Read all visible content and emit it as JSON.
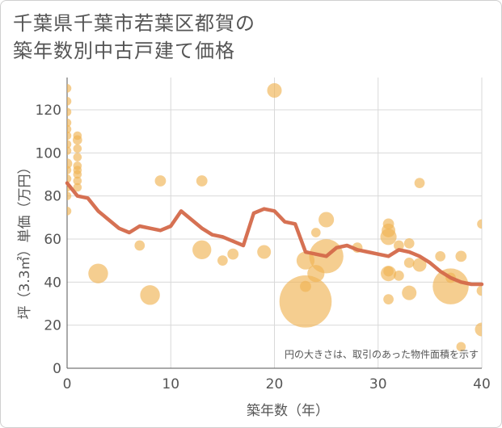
{
  "chart_data": {
    "type": "scatter",
    "title_line1": "千葉県千葉市若葉区都賀の",
    "title_line2": "築年数別中古戸建て価格",
    "xlabel": "築年数（年）",
    "ylabel": "坪（3.3㎡）単価（万円）",
    "xlim": [
      0,
      40
    ],
    "ylim": [
      0,
      135
    ],
    "x_ticks": [
      0,
      10,
      20,
      30,
      40
    ],
    "y_ticks": [
      0,
      20,
      40,
      60,
      80,
      100,
      120
    ],
    "annotation": "円の大きさは、取引のあった物件面積を示す",
    "colors": {
      "bubble": "#f0b455",
      "line": "#d4694a",
      "grid": "#d9d9d9"
    },
    "points": [
      {
        "x": 0,
        "y": 130,
        "size": 1
      },
      {
        "x": 0,
        "y": 124,
        "size": 1
      },
      {
        "x": 0,
        "y": 119,
        "size": 1
      },
      {
        "x": 0,
        "y": 114,
        "size": 1
      },
      {
        "x": 0,
        "y": 111,
        "size": 1
      },
      {
        "x": 0,
        "y": 108,
        "size": 1
      },
      {
        "x": 0,
        "y": 104,
        "size": 1
      },
      {
        "x": 0,
        "y": 101,
        "size": 1
      },
      {
        "x": 0,
        "y": 95,
        "size": 1.2
      },
      {
        "x": 0,
        "y": 92,
        "size": 1
      },
      {
        "x": 0,
        "y": 88,
        "size": 1
      },
      {
        "x": 0,
        "y": 84,
        "size": 1
      },
      {
        "x": 0,
        "y": 80,
        "size": 1
      },
      {
        "x": 0,
        "y": 73,
        "size": 1
      },
      {
        "x": 1,
        "y": 108,
        "size": 1
      },
      {
        "x": 1,
        "y": 106,
        "size": 1.1
      },
      {
        "x": 1,
        "y": 102,
        "size": 1
      },
      {
        "x": 1,
        "y": 98,
        "size": 1
      },
      {
        "x": 1,
        "y": 94,
        "size": 1
      },
      {
        "x": 1,
        "y": 92,
        "size": 1
      },
      {
        "x": 1,
        "y": 90,
        "size": 1
      },
      {
        "x": 1,
        "y": 87,
        "size": 1
      },
      {
        "x": 1,
        "y": 84,
        "size": 1
      },
      {
        "x": 3,
        "y": 44,
        "size": 2.3
      },
      {
        "x": 7,
        "y": 57,
        "size": 1.2
      },
      {
        "x": 8,
        "y": 34,
        "size": 2.3
      },
      {
        "x": 9,
        "y": 87,
        "size": 1.3
      },
      {
        "x": 13,
        "y": 87,
        "size": 1.3
      },
      {
        "x": 13,
        "y": 55,
        "size": 2.2
      },
      {
        "x": 15,
        "y": 50,
        "size": 1.2
      },
      {
        "x": 16,
        "y": 53,
        "size": 1.3
      },
      {
        "x": 19,
        "y": 54,
        "size": 1.6
      },
      {
        "x": 20,
        "y": 129,
        "size": 1.7
      },
      {
        "x": 23,
        "y": 31,
        "size": 6.1
      },
      {
        "x": 23,
        "y": 50,
        "size": 2.1
      },
      {
        "x": 23,
        "y": 38,
        "size": 1.3
      },
      {
        "x": 24,
        "y": 63,
        "size": 1.1
      },
      {
        "x": 24,
        "y": 44,
        "size": 2.0
      },
      {
        "x": 25,
        "y": 52,
        "size": 4.0
      },
      {
        "x": 25,
        "y": 69,
        "size": 1.8
      },
      {
        "x": 28,
        "y": 56,
        "size": 1.2
      },
      {
        "x": 31,
        "y": 67,
        "size": 1.3
      },
      {
        "x": 31,
        "y": 64,
        "size": 1.6
      },
      {
        "x": 31,
        "y": 61,
        "size": 1.9
      },
      {
        "x": 31,
        "y": 45,
        "size": 1.2
      },
      {
        "x": 31,
        "y": 44,
        "size": 1.8
      },
      {
        "x": 31,
        "y": 32,
        "size": 1.2
      },
      {
        "x": 32,
        "y": 57,
        "size": 1.2
      },
      {
        "x": 32,
        "y": 43,
        "size": 1.2
      },
      {
        "x": 33,
        "y": 58,
        "size": 1.2
      },
      {
        "x": 33,
        "y": 49,
        "size": 1.2
      },
      {
        "x": 33,
        "y": 35,
        "size": 1.7
      },
      {
        "x": 34,
        "y": 86,
        "size": 1.2
      },
      {
        "x": 34,
        "y": 48,
        "size": 1.6
      },
      {
        "x": 36,
        "y": 52,
        "size": 1.2
      },
      {
        "x": 37,
        "y": 38,
        "size": 4.2
      },
      {
        "x": 37,
        "y": 42,
        "size": 1.2
      },
      {
        "x": 38,
        "y": 52,
        "size": 1.3
      },
      {
        "x": 38,
        "y": 10,
        "size": 1.1
      },
      {
        "x": 40,
        "y": 67,
        "size": 1.1
      },
      {
        "x": 40,
        "y": 36,
        "size": 1.2
      },
      {
        "x": 40,
        "y": 18,
        "size": 1.6
      }
    ],
    "trend": {
      "x": [
        0,
        1,
        2,
        3,
        4,
        5,
        6,
        7,
        8,
        9,
        10,
        11,
        12,
        13,
        14,
        15,
        16,
        17,
        18,
        19,
        20,
        21,
        22,
        23,
        24,
        25,
        26,
        27,
        28,
        29,
        30,
        31,
        32,
        33,
        34,
        35,
        36,
        37,
        38,
        39,
        40
      ],
      "y": [
        86,
        80,
        79,
        73,
        69,
        65,
        63,
        66,
        65,
        64,
        66,
        73,
        69,
        65,
        62,
        61,
        59,
        57,
        72,
        74,
        73,
        68,
        67,
        54,
        53,
        52,
        56,
        57,
        55,
        54,
        53,
        52,
        55,
        54,
        52,
        49,
        45,
        42,
        40,
        39,
        39
      ]
    }
  }
}
